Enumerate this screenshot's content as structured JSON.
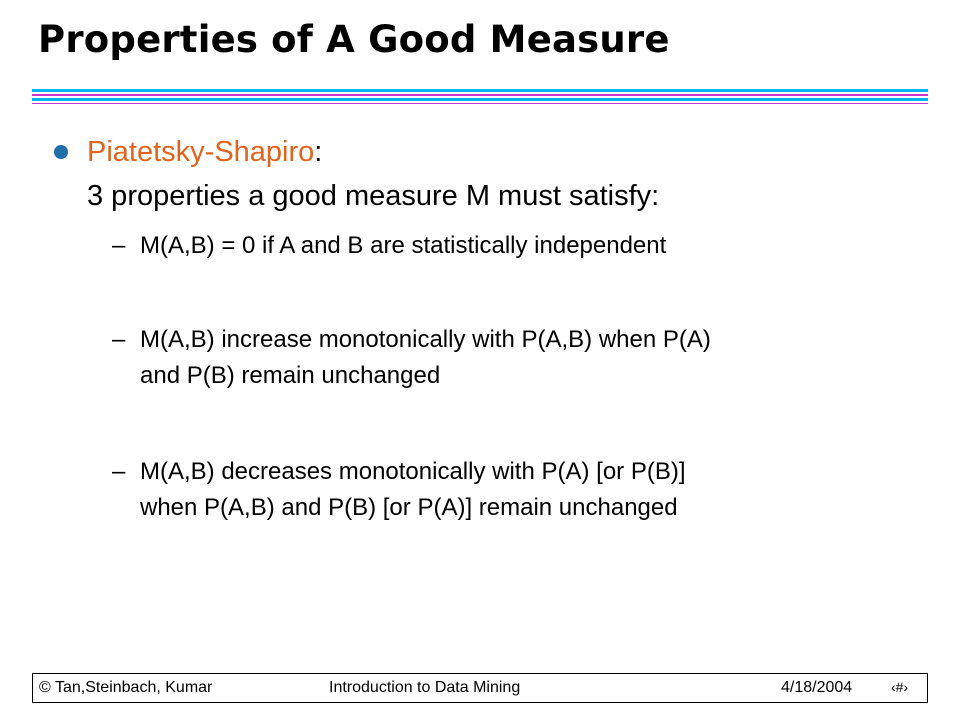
{
  "slide": {
    "title": "Properties of A Good Measure",
    "colors": {
      "rule_blue": "#00b4f0",
      "rule_magenta": "#cc33cc",
      "bullet": "#1f6ea8",
      "author_text": "#e0641e"
    },
    "main_bullet": {
      "author": "Piatetsky-Shapiro",
      "colon": ":",
      "line2": "3 properties a good measure M must satisfy:"
    },
    "sub_items": [
      {
        "dash": "–",
        "lines": [
          "M(A,B) = 0 if A and B are statistically independent"
        ]
      },
      {
        "dash": "–",
        "lines": [
          "M(A,B) increase monotonically with P(A,B) when P(A)",
          "and P(B) remain unchanged"
        ]
      },
      {
        "dash": "–",
        "lines": [
          "M(A,B) decreases monotonically with P(A) [or P(B)]",
          "when P(A,B) and P(B) [or P(A)] remain unchanged"
        ]
      }
    ]
  },
  "footer": {
    "copyright": "© Tan,Steinbach, Kumar",
    "course": "Introduction to Data Mining",
    "date": "4/18/2004",
    "page_marker": "‹#›"
  }
}
